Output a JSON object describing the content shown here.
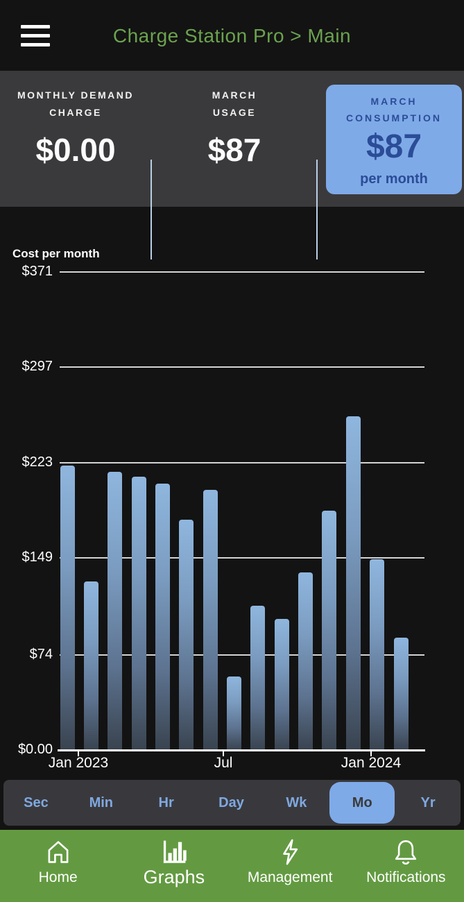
{
  "header": {
    "title": "Charge Station Pro > Main"
  },
  "stats": {
    "items": [
      {
        "label_line1": "MONTHLY DEMAND",
        "label_line2": "CHARGE",
        "value": "$0.00"
      },
      {
        "label_line1": "MARCH",
        "label_line2": "USAGE",
        "value": "$87"
      },
      {
        "label_line1": "MARCH",
        "label_line2": "CONSUMPTION",
        "value": "$87",
        "sublabel": "per month",
        "highlighted": true
      }
    ]
  },
  "chart_data": {
    "type": "bar",
    "title": "Cost per month",
    "xlabel": "",
    "ylabel": "Cost per month ($)",
    "categories": [
      "Jan 2023",
      "Feb 2023",
      "Mar 2023",
      "Apr 2023",
      "May 2023",
      "Jun 2023",
      "Jul 2023",
      "Aug 2023",
      "Sep 2023",
      "Oct 2023",
      "Nov 2023",
      "Dec 2023",
      "Jan 2024",
      "Feb 2024",
      "Mar 2024"
    ],
    "values": [
      221,
      131,
      216,
      212,
      207,
      179,
      202,
      57,
      112,
      102,
      138,
      186,
      259,
      148,
      87
    ],
    "ylim": [
      0,
      371
    ],
    "grid": true,
    "y_ticks": [
      {
        "label": "$371",
        "value": 371
      },
      {
        "label": "$297",
        "value": 297
      },
      {
        "label": "$223",
        "value": 223
      },
      {
        "label": "$149",
        "value": 149
      },
      {
        "label": "$74",
        "value": 74
      },
      {
        "label": "$0.00",
        "value": 0
      }
    ],
    "x_ticks": [
      {
        "label": "Jan 2023",
        "month_index": 0
      },
      {
        "label": "Jul",
        "month_index": 6
      },
      {
        "label": "Jan 2024",
        "month_index": 12
      }
    ],
    "bar_color_top": "#8fb6de",
    "bar_color_bottom": "#39434f"
  },
  "time_selector": {
    "selected": "Mo",
    "options": [
      "Sec",
      "Min",
      "Hr",
      "Day",
      "Wk",
      "Mo",
      "Yr"
    ]
  },
  "bottom_nav": {
    "items": [
      {
        "label": "Home",
        "icon": "home-icon",
        "active": false
      },
      {
        "label": "Graphs",
        "icon": "bar-chart-icon",
        "active": true
      },
      {
        "label": "Management",
        "icon": "lightning-icon",
        "active": false
      },
      {
        "label": "Notifications",
        "icon": "bell-icon",
        "active": false
      }
    ]
  },
  "colors": {
    "background": "#131313",
    "header_title_green": "#6ba24f",
    "stats_background": "#3a3a3c",
    "divider_blue": "#b9cfe6",
    "highlight_card_blue": "#7faae8",
    "highlight_card_text": "#2b4c97",
    "selector_text_blue": "#80a8e0",
    "nav_green": "#639a41"
  }
}
